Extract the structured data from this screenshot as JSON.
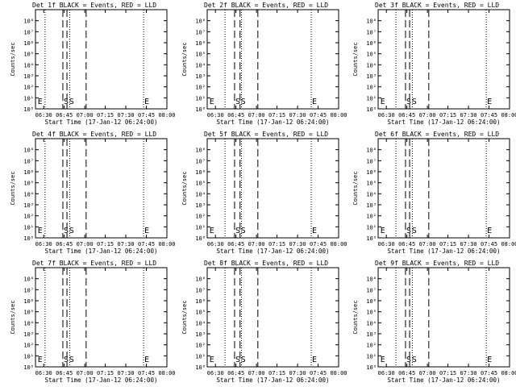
{
  "chart_data": [
    {
      "type": "line",
      "title": "Det 1f BLACK = Events, RED = LLD",
      "xlabel": "Start Time (17-Jan-12 06:24:00)",
      "ylabel": "Counts/sec",
      "x_range": [
        "06:24",
        "08:00"
      ],
      "x_ticks": [
        "06:30",
        "06:45",
        "07:00",
        "07:15",
        "07:30",
        "07:45",
        "08:00"
      ],
      "y_range": [
        1,
        1000000000.0
      ],
      "y_scale": "log",
      "y_ticks": [
        "10⁰",
        "10¹",
        "10²",
        "10³",
        "10⁴",
        "10⁵",
        "10⁶",
        "10⁷",
        "10⁸"
      ],
      "vlines_dotted": [
        "06:31",
        "06:49",
        "07:43",
        "08:00"
      ],
      "vlines_dashed": [
        "06:44",
        "06:47",
        "07:01"
      ],
      "markers": [
        {
          "label": "E",
          "x": "06:25"
        },
        {
          "label": "S",
          "x": "06:44"
        },
        {
          "label": "S",
          "x": "06:48"
        },
        {
          "label": "E",
          "x": "07:43"
        }
      ],
      "series": []
    },
    {
      "type": "line",
      "title": "Det 2f BLACK = Events, RED = LLD",
      "xlabel": "Start Time (17-Jan-12 06:24:00)",
      "ylabel": "Counts/sec",
      "x_range": [
        "06:24",
        "08:00"
      ],
      "x_ticks": [
        "06:30",
        "06:45",
        "07:00",
        "07:15",
        "07:30",
        "07:45",
        "08:00"
      ],
      "y_range": [
        1,
        1000000000.0
      ],
      "y_scale": "log",
      "y_ticks": [
        "10⁰",
        "10¹",
        "10²",
        "10³",
        "10⁴",
        "10⁵",
        "10⁶",
        "10⁷",
        "10⁸"
      ],
      "vlines_dotted": [
        "06:37",
        "06:49",
        "07:40",
        "08:00"
      ],
      "vlines_dashed": [
        "06:44",
        "06:48",
        "07:01"
      ],
      "markers": [
        {
          "label": "E",
          "x": "06:25"
        },
        {
          "label": "S",
          "x": "06:44"
        },
        {
          "label": "S",
          "x": "06:48"
        },
        {
          "label": "E",
          "x": "07:40"
        }
      ],
      "series": []
    },
    {
      "type": "line",
      "title": "Det 3f BLACK = Events, RED = LLD",
      "xlabel": "Start Time (17-Jan-12 06:24:00)",
      "ylabel": "Counts/sec",
      "x_range": [
        "06:24",
        "08:00"
      ],
      "x_ticks": [
        "06:30",
        "06:45",
        "07:00",
        "07:15",
        "07:30",
        "07:45",
        "08:00"
      ],
      "y_range": [
        1,
        1000000000.0
      ],
      "y_scale": "log",
      "y_ticks": [
        "10⁰",
        "10¹",
        "10²",
        "10³",
        "10⁴",
        "10⁵",
        "10⁶",
        "10⁷",
        "10⁸"
      ],
      "vlines_dotted": [
        "06:37",
        "06:49",
        "07:43",
        "08:00"
      ],
      "vlines_dashed": [
        "06:44",
        "06:47",
        "07:01"
      ],
      "markers": [
        {
          "label": "E",
          "x": "06:25"
        },
        {
          "label": "S",
          "x": "06:44"
        },
        {
          "label": "S",
          "x": "06:48"
        },
        {
          "label": "E",
          "x": "07:43"
        }
      ],
      "series": []
    },
    {
      "type": "line",
      "title": "Det 4f BLACK = Events, RED = LLD",
      "xlabel": "Start Time (17-Jan-12 06:24:00)",
      "ylabel": "Counts/sec",
      "x_range": [
        "06:24",
        "08:00"
      ],
      "x_ticks": [
        "06:30",
        "06:45",
        "07:00",
        "07:15",
        "07:30",
        "07:45",
        "08:00"
      ],
      "y_range": [
        1,
        1000000000.0
      ],
      "y_scale": "log",
      "y_ticks": [
        "10⁰",
        "10¹",
        "10²",
        "10³",
        "10⁴",
        "10⁵",
        "10⁶",
        "10⁷",
        "10⁸"
      ],
      "vlines_dotted": [
        "06:31",
        "06:49",
        "07:43",
        "08:00"
      ],
      "vlines_dashed": [
        "06:44",
        "06:47",
        "07:01"
      ],
      "markers": [
        {
          "label": "E",
          "x": "06:25"
        },
        {
          "label": "S",
          "x": "06:44"
        },
        {
          "label": "S",
          "x": "06:48"
        },
        {
          "label": "E",
          "x": "07:43"
        }
      ],
      "series": []
    },
    {
      "type": "line",
      "title": "Det 5f BLACK = Events, RED = LLD",
      "xlabel": "Start Time (17-Jan-12 06:24:00)",
      "ylabel": "Counts/sec",
      "x_range": [
        "06:24",
        "08:00"
      ],
      "x_ticks": [
        "06:30",
        "06:45",
        "07:00",
        "07:15",
        "07:30",
        "07:45",
        "08:00"
      ],
      "y_range": [
        1,
        1000000000.0
      ],
      "y_scale": "log",
      "y_ticks": [
        "10⁰",
        "10¹",
        "10²",
        "10³",
        "10⁴",
        "10⁵",
        "10⁶",
        "10⁷",
        "10⁸"
      ],
      "vlines_dotted": [
        "06:37",
        "06:49",
        "07:40",
        "08:00"
      ],
      "vlines_dashed": [
        "06:44",
        "06:48",
        "07:01"
      ],
      "markers": [
        {
          "label": "E",
          "x": "06:25"
        },
        {
          "label": "S",
          "x": "06:44"
        },
        {
          "label": "S",
          "x": "06:48"
        },
        {
          "label": "E",
          "x": "07:40"
        }
      ],
      "series": []
    },
    {
      "type": "line",
      "title": "Det 6f BLACK = Events, RED = LLD",
      "xlabel": "Start Time (17-Jan-12 06:24:00)",
      "ylabel": "Counts/sec",
      "x_range": [
        "06:24",
        "08:00"
      ],
      "x_ticks": [
        "06:30",
        "06:45",
        "07:00",
        "07:15",
        "07:30",
        "07:45",
        "08:00"
      ],
      "y_range": [
        1,
        1000000000.0
      ],
      "y_scale": "log",
      "y_ticks": [
        "10⁰",
        "10¹",
        "10²",
        "10³",
        "10⁴",
        "10⁵",
        "10⁶",
        "10⁷",
        "10⁸"
      ],
      "vlines_dotted": [
        "06:37",
        "06:49",
        "07:43",
        "08:00"
      ],
      "vlines_dashed": [
        "06:44",
        "06:47",
        "07:01"
      ],
      "markers": [
        {
          "label": "E",
          "x": "06:25"
        },
        {
          "label": "S",
          "x": "06:44"
        },
        {
          "label": "S",
          "x": "06:48"
        },
        {
          "label": "E",
          "x": "07:43"
        }
      ],
      "series": []
    },
    {
      "type": "line",
      "title": "Det 7f BLACK = Events, RED = LLD",
      "xlabel": "Start Time (17-Jan-12 06:24:00)",
      "ylabel": "Counts/sec",
      "x_range": [
        "06:24",
        "08:00"
      ],
      "x_ticks": [
        "06:30",
        "06:45",
        "07:00",
        "07:15",
        "07:30",
        "07:45",
        "08:00"
      ],
      "y_range": [
        1,
        1000000000.0
      ],
      "y_scale": "log",
      "y_ticks": [
        "10⁰",
        "10¹",
        "10²",
        "10³",
        "10⁴",
        "10⁵",
        "10⁶",
        "10⁷",
        "10⁸"
      ],
      "vlines_dotted": [
        "06:31",
        "06:49",
        "07:43",
        "08:00"
      ],
      "vlines_dashed": [
        "06:44",
        "06:47",
        "07:01"
      ],
      "markers": [
        {
          "label": "E",
          "x": "06:25"
        },
        {
          "label": "S",
          "x": "06:44"
        },
        {
          "label": "S",
          "x": "06:48"
        },
        {
          "label": "E",
          "x": "07:43"
        }
      ],
      "series": []
    },
    {
      "type": "line",
      "title": "Det 8f BLACK = Events, RED = LLD",
      "xlabel": "Start Time (17-Jan-12 06:24:00)",
      "ylabel": "Counts/sec",
      "x_range": [
        "06:24",
        "08:00"
      ],
      "x_ticks": [
        "06:30",
        "06:45",
        "07:00",
        "07:15",
        "07:30",
        "07:45",
        "08:00"
      ],
      "y_range": [
        1,
        1000000000.0
      ],
      "y_scale": "log",
      "y_ticks": [
        "10⁰",
        "10¹",
        "10²",
        "10³",
        "10⁴",
        "10⁵",
        "10⁶",
        "10⁷",
        "10⁸"
      ],
      "vlines_dotted": [
        "06:37",
        "06:49",
        "07:40",
        "08:00"
      ],
      "vlines_dashed": [
        "06:44",
        "06:48",
        "07:01"
      ],
      "markers": [
        {
          "label": "E",
          "x": "06:25"
        },
        {
          "label": "S",
          "x": "06:44"
        },
        {
          "label": "S",
          "x": "06:48"
        },
        {
          "label": "E",
          "x": "07:40"
        }
      ],
      "series": []
    },
    {
      "type": "line",
      "title": "Det 9f BLACK = Events, RED = LLD",
      "xlabel": "Start Time (17-Jan-12 06:24:00)",
      "ylabel": "Counts/sec",
      "x_range": [
        "06:24",
        "08:00"
      ],
      "x_ticks": [
        "06:30",
        "06:45",
        "07:00",
        "07:15",
        "07:30",
        "07:45",
        "08:00"
      ],
      "y_range": [
        1,
        1000000000.0
      ],
      "y_scale": "log",
      "y_ticks": [
        "10⁰",
        "10¹",
        "10²",
        "10³",
        "10⁴",
        "10⁵",
        "10⁶",
        "10⁷",
        "10⁸"
      ],
      "vlines_dotted": [
        "06:37",
        "06:49",
        "07:43",
        "08:00"
      ],
      "vlines_dashed": [
        "06:44",
        "06:47",
        "07:01"
      ],
      "markers": [
        {
          "label": "E",
          "x": "06:25"
        },
        {
          "label": "S",
          "x": "06:44"
        },
        {
          "label": "S",
          "x": "06:48"
        },
        {
          "label": "E",
          "x": "07:43"
        }
      ],
      "series": []
    }
  ]
}
